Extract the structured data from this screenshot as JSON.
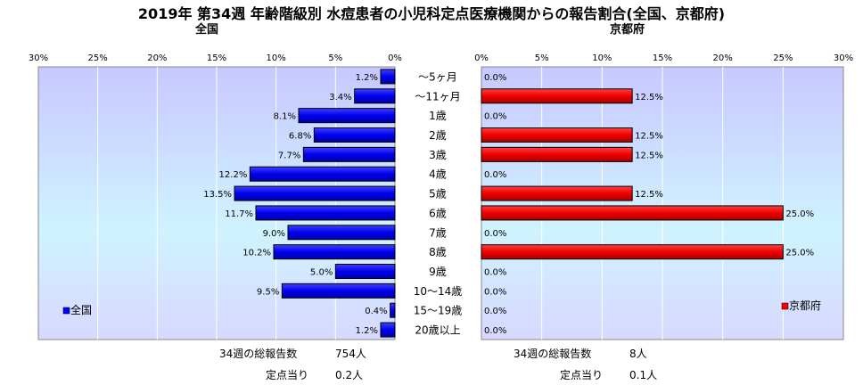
{
  "title": "2019年 第34週 年齢階級別 水痘患者の小児科定点医療機関からの報告割合(全国、京都府)",
  "categories": [
    "〜5ヶ月",
    "〜11ヶ月",
    "1歳",
    "2歳",
    "3歳",
    "4歳",
    "5歳",
    "6歳",
    "7歳",
    "8歳",
    "9歳",
    "10〜14歳",
    "15〜19歳",
    "20歳以上"
  ],
  "chart_data": [
    {
      "type": "bar",
      "title": "全国",
      "categories": [
        "〜5ヶ月",
        "〜11ヶ月",
        "1歳",
        "2歳",
        "3歳",
        "4歳",
        "5歳",
        "6歳",
        "7歳",
        "8歳",
        "9歳",
        "10〜14歳",
        "15〜19歳",
        "20歳以上"
      ],
      "series": [
        {
          "name": "全国",
          "values": [
            1.2,
            3.4,
            8.1,
            6.8,
            7.7,
            12.2,
            13.5,
            11.7,
            9.0,
            10.2,
            5.0,
            9.5,
            0.4,
            1.2
          ],
          "color": "#0000ff"
        }
      ],
      "value_labels": [
        "1.2%",
        "3.4%",
        "8.1%",
        "6.8%",
        "7.7%",
        "12.2%",
        "13.5%",
        "11.7%",
        "9.0%",
        "10.2%",
        "5.0%",
        "9.5%",
        "0.4%",
        "1.2%"
      ],
      "xlim": [
        0,
        30
      ],
      "x_reversed": true,
      "tick_labels": [
        "30%",
        "25%",
        "20%",
        "15%",
        "10%",
        "5%",
        "0%"
      ],
      "legend": "bottom-left",
      "grid": true,
      "plot_bg": "#ccccff"
    },
    {
      "type": "bar",
      "title": "京都府",
      "categories": [
        "〜5ヶ月",
        "〜11ヶ月",
        "1歳",
        "2歳",
        "3歳",
        "4歳",
        "5歳",
        "6歳",
        "7歳",
        "8歳",
        "9歳",
        "10〜14歳",
        "15〜19歳",
        "20歳以上"
      ],
      "series": [
        {
          "name": "京都府",
          "values": [
            0.0,
            12.5,
            0.0,
            12.5,
            12.5,
            0.0,
            12.5,
            25.0,
            0.0,
            25.0,
            0.0,
            0.0,
            0.0,
            0.0
          ],
          "color": "#ff0000"
        }
      ],
      "value_labels": [
        "0.0%",
        "12.5%",
        "0.0%",
        "12.5%",
        "12.5%",
        "0.0%",
        "12.5%",
        "25.0%",
        "0.0%",
        "25.0%",
        "0.0%",
        "0.0%",
        "0.0%",
        "0.0%"
      ],
      "xlim": [
        0,
        30
      ],
      "tick_labels": [
        "0%",
        "5%",
        "10%",
        "15%",
        "20%",
        "25%",
        "30%"
      ],
      "legend": "bottom-right",
      "grid": true,
      "plot_bg": "#ccffff"
    }
  ],
  "footer": {
    "national_total_label": "34週の総報告数",
    "national_total_value": "754人",
    "national_per_label": "定点当り",
    "national_per_value": "0.2人",
    "kyoto_total_label": "34週の総報告数",
    "kyoto_total_value": "8人",
    "kyoto_per_label": "定点当り",
    "kyoto_per_value": "0.1人"
  }
}
